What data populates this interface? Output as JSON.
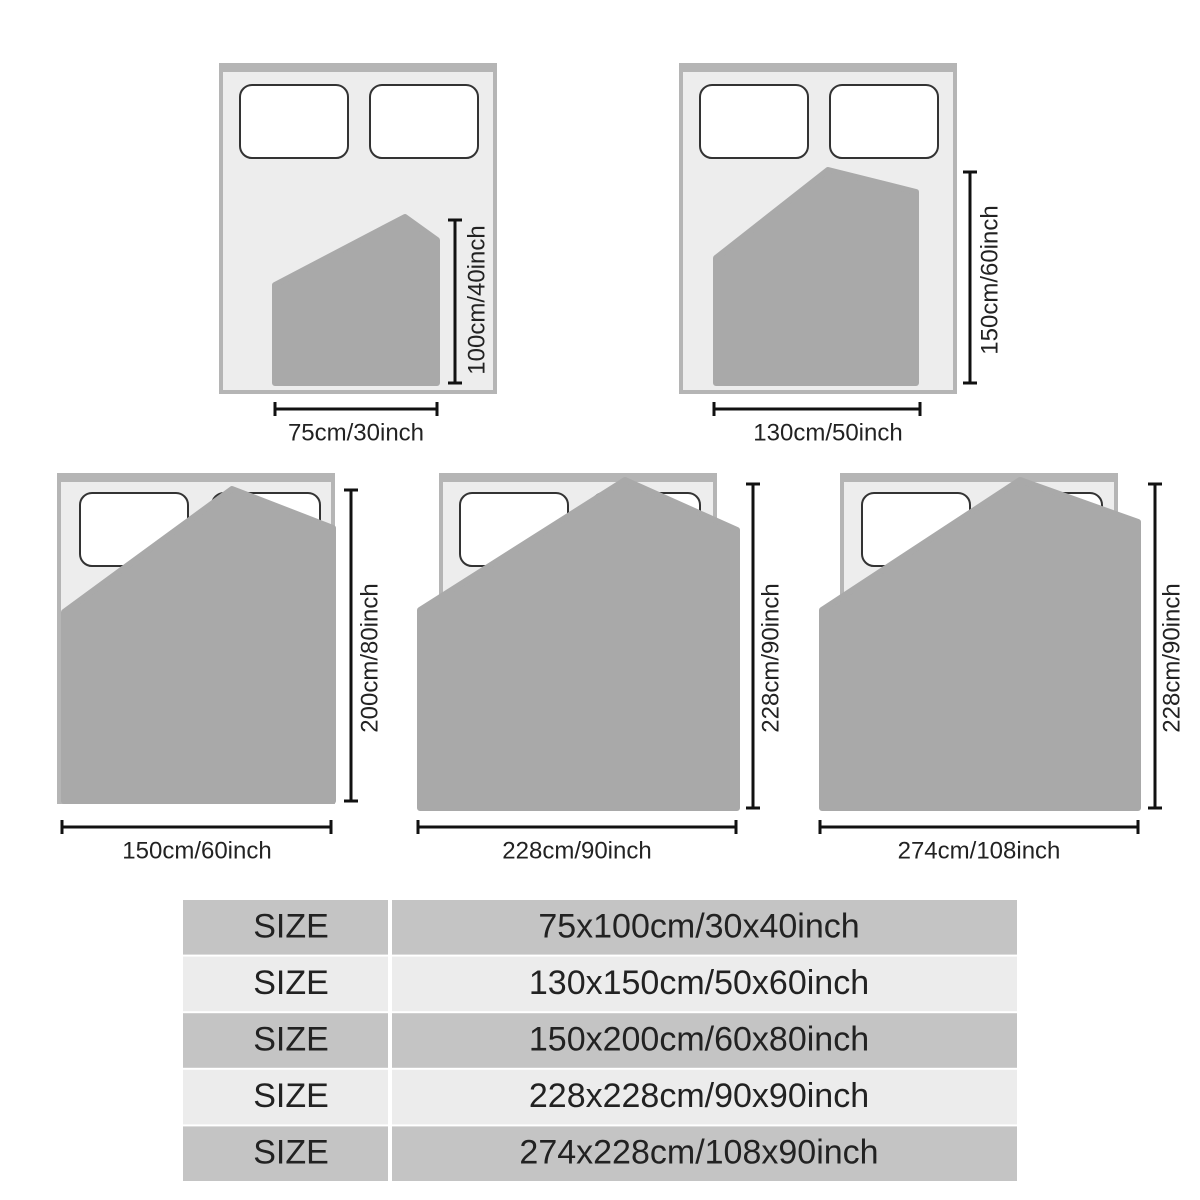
{
  "diagrams": [
    {
      "width_label": "75cm/30inch",
      "height_label": "100cm/40inch"
    },
    {
      "width_label": "130cm/50inch",
      "height_label": "150cm/60inch"
    },
    {
      "width_label": "150cm/60inch",
      "height_label": "200cm/80inch"
    },
    {
      "width_label": "228cm/90inch",
      "height_label": "228cm/90inch"
    },
    {
      "width_label": "274cm/108inch",
      "height_label": "228cm/90inch"
    }
  ],
  "table": {
    "rows": [
      [
        "SIZE",
        "75x100cm/30x40inch"
      ],
      [
        "SIZE",
        "130x150cm/50x60inch"
      ],
      [
        "SIZE",
        "150x200cm/60x80inch"
      ],
      [
        "SIZE",
        "228x228cm/90x90inch"
      ],
      [
        "SIZE",
        "274x228cm/108x90inch"
      ]
    ]
  }
}
